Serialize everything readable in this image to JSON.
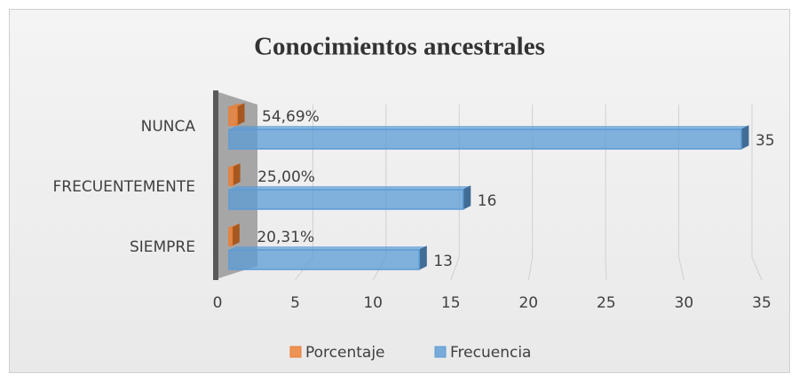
{
  "chart_data": {
    "type": "bar3d_horizontal",
    "title": "Conocimientos ancestrales",
    "categories": [
      "NUNCA",
      "FRECUENTEMENTE",
      "SIEMPRE"
    ],
    "series": [
      {
        "name": "Porcentaje",
        "color": "#ed7d31",
        "values": [
          0.5469,
          0.25,
          0.2031
        ],
        "value_labels": [
          "54,69%",
          "25,00%",
          "20,31%"
        ]
      },
      {
        "name": "Frecuencia",
        "color": "#5b9bd5",
        "values": [
          35,
          16,
          13
        ]
      }
    ],
    "xlim": [
      0,
      35
    ],
    "xticks": [
      0,
      5,
      10,
      15,
      20,
      25,
      30,
      35
    ],
    "grid": true,
    "legend": "bottom"
  }
}
